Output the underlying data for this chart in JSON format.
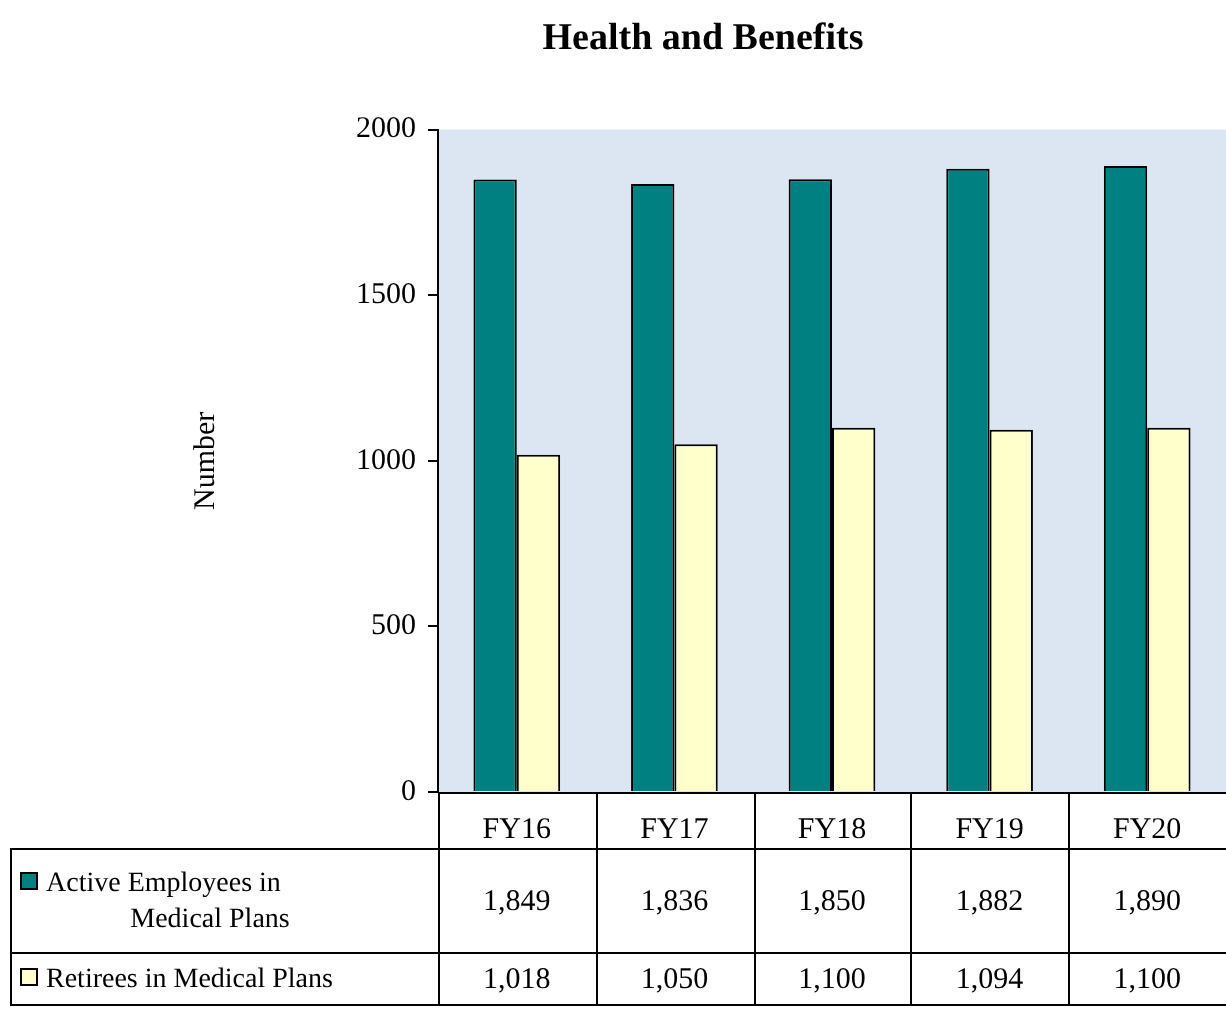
{
  "chart_data": {
    "type": "bar",
    "title": "Health and Benefits",
    "ylabel": "Number",
    "categories": [
      "FY16",
      "FY17",
      "FY18",
      "FY19",
      "FY20"
    ],
    "series": [
      {
        "name": "Active Employees in Medical Plans",
        "color": "#008080",
        "values": [
          1849,
          1836,
          1850,
          1882,
          1890
        ],
        "value_labels": [
          "1,849",
          "1,836",
          "1,850",
          "1,882",
          "1,890"
        ]
      },
      {
        "name": "Retirees in Medical Plans",
        "color": "#ffffcc",
        "values": [
          1018,
          1050,
          1100,
          1094,
          1100
        ],
        "value_labels": [
          "1,018",
          "1,050",
          "1,100",
          "1,094",
          "1,100"
        ]
      }
    ],
    "ylim": [
      0,
      2000
    ],
    "yticks": [
      0,
      500,
      1000,
      1500,
      2000
    ],
    "grid": false,
    "legend": "bottom"
  }
}
